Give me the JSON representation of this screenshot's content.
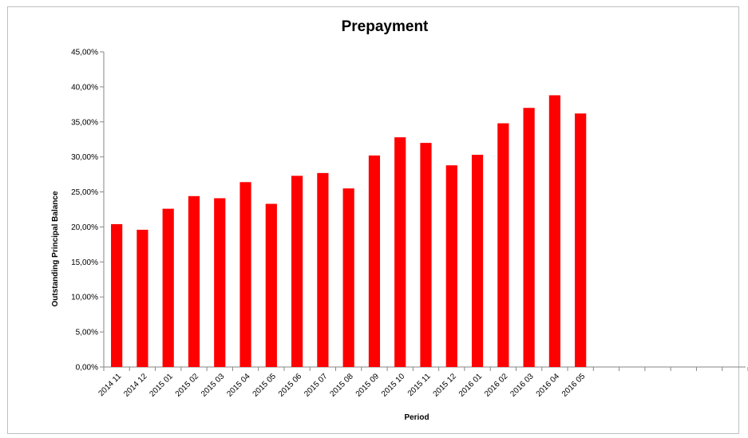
{
  "chart_data": {
    "type": "bar",
    "title": "Prepayment",
    "xlabel": "Period",
    "ylabel": "Outstanding Principal Balance",
    "categories": [
      "2014 11",
      "2014 12",
      "2015 01",
      "2015 02",
      "2015 03",
      "2015 04",
      "2015 05",
      "2015 06",
      "2015 07",
      "2015 08",
      "2015 09",
      "2015 10",
      "2015 11",
      "2015 12",
      "2016 01",
      "2016 02",
      "2016 03",
      "2016 04",
      "2016 05"
    ],
    "series": [
      {
        "values": [
          20.4,
          19.6,
          22.6,
          24.4,
          24.1,
          26.4,
          23.3,
          27.3,
          27.7,
          25.5,
          30.2,
          32.8,
          32.0,
          28.8,
          30.3,
          34.8,
          37.0,
          38.8,
          36.2
        ]
      }
    ],
    "ylim": [
      0,
      45
    ],
    "yticks": [
      "0,00%",
      "5,00%",
      "10,00%",
      "15,00%",
      "20,00%",
      "25,00%",
      "30,00%",
      "35,00%",
      "40,00%",
      "45,00%"
    ],
    "total_slots": 25,
    "bar_color": "#ff0000",
    "grid": false,
    "legend": "none"
  }
}
